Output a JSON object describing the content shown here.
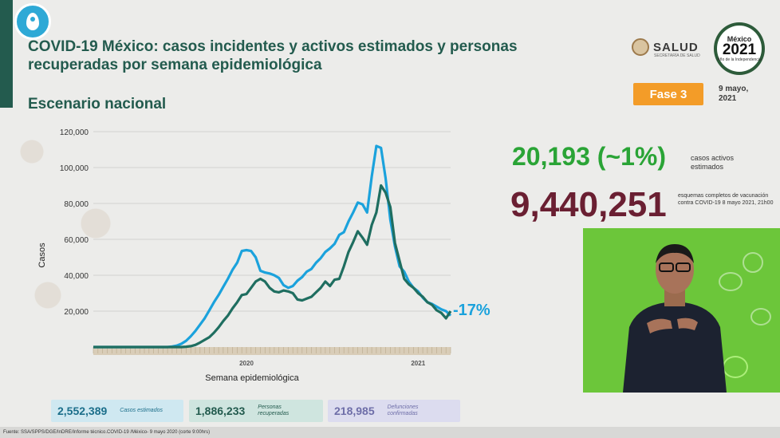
{
  "header": {
    "title": "COVID-19 México: casos incidentes y activos estimados y personas recuperadas por semana epidemiológica",
    "subtitle": "Escenario nacional",
    "salud_name": "SALUD",
    "salud_sub": "SECRETARÍA DE SALUD",
    "logo_top": "México",
    "logo_year": "2021",
    "logo_caption": "Año de la Independencia",
    "fase": "Fase 3",
    "date": "9 mayo,\n2021"
  },
  "stats": {
    "active_value": "20,193 (~1%)",
    "active_caption": "casos activos estimados",
    "vaccine_value": "9,440,251",
    "vaccine_caption": "esquemas completos de vacunación contra COVID-19 8 mayo 2021, 21h00"
  },
  "change_label": "-17%",
  "boxes": [
    {
      "value": "2,552,389",
      "caption": "Casos estimados"
    },
    {
      "value": "1,886,233",
      "caption": "Personas recuperadas"
    },
    {
      "value": "218,985",
      "caption": "Defunciones confirmadas"
    }
  ],
  "footer": "Fuente: SSA/SPPS/DGE/InDRE/Informe técnico.COVID-19 /México- 9 mayo 2020 (corte 9:00hrs)",
  "colors": {
    "incident": "#1ba2dc",
    "active": "#1f6e60",
    "green_stat": "#2aa436",
    "vaccine_stat": "#6a1f32",
    "fase": "#f39c28"
  },
  "chart_data": {
    "type": "line",
    "title": "",
    "xlabel": "Semana epidemiológica",
    "ylabel": "Casos",
    "x_tick_labels": [
      "2020",
      "2021"
    ],
    "yticks": [
      20000,
      40000,
      60000,
      80000,
      100000,
      120000
    ],
    "ytick_labels": [
      "20,000",
      "40,000",
      "60,000",
      "80,000",
      "100,000",
      "120,000"
    ],
    "ylim": [
      0,
      120000
    ],
    "grid": true,
    "series": [
      {
        "name": "",
        "color": "#1ba2dc",
        "values": [
          0,
          0,
          0,
          0,
          0,
          0,
          0,
          0,
          0,
          0,
          0,
          0,
          0,
          0,
          0,
          0,
          0,
          300,
          800,
          1800,
          3500,
          6000,
          9000,
          12500,
          16000,
          20500,
          25000,
          29000,
          33500,
          38000,
          43000,
          47000,
          53500,
          54000,
          53500,
          50000,
          42500,
          41500,
          41000,
          40000,
          38500,
          34500,
          33000,
          34000,
          37000,
          39000,
          42000,
          43500,
          47000,
          49500,
          53000,
          55000,
          57500,
          62500,
          64000,
          70000,
          75000,
          80500,
          79500,
          75000,
          95000,
          112000,
          111000,
          94000,
          71000,
          56000,
          45000,
          42000,
          36500,
          33000,
          31000,
          27500,
          25000,
          24000,
          22500,
          21000,
          20000,
          17500
        ]
      },
      {
        "name": "",
        "color": "#1f6e60",
        "values": [
          0,
          0,
          0,
          0,
          0,
          0,
          0,
          0,
          0,
          0,
          0,
          0,
          0,
          0,
          0,
          0,
          0,
          0,
          0,
          0,
          200,
          500,
          1200,
          2500,
          4000,
          5500,
          8000,
          11000,
          14500,
          17500,
          21500,
          25000,
          29000,
          29500,
          33000,
          36500,
          38000,
          36500,
          33000,
          31000,
          30500,
          31500,
          31000,
          30000,
          26500,
          26000,
          27000,
          28000,
          30500,
          33000,
          36500,
          34000,
          37500,
          38000,
          45000,
          53000,
          58500,
          64500,
          61000,
          57000,
          68000,
          75000,
          90000,
          86000,
          78000,
          58000,
          48000,
          38000,
          35000,
          33000,
          30000,
          28000,
          25000,
          23500,
          20500,
          19000,
          16000,
          20000
        ]
      }
    ]
  }
}
